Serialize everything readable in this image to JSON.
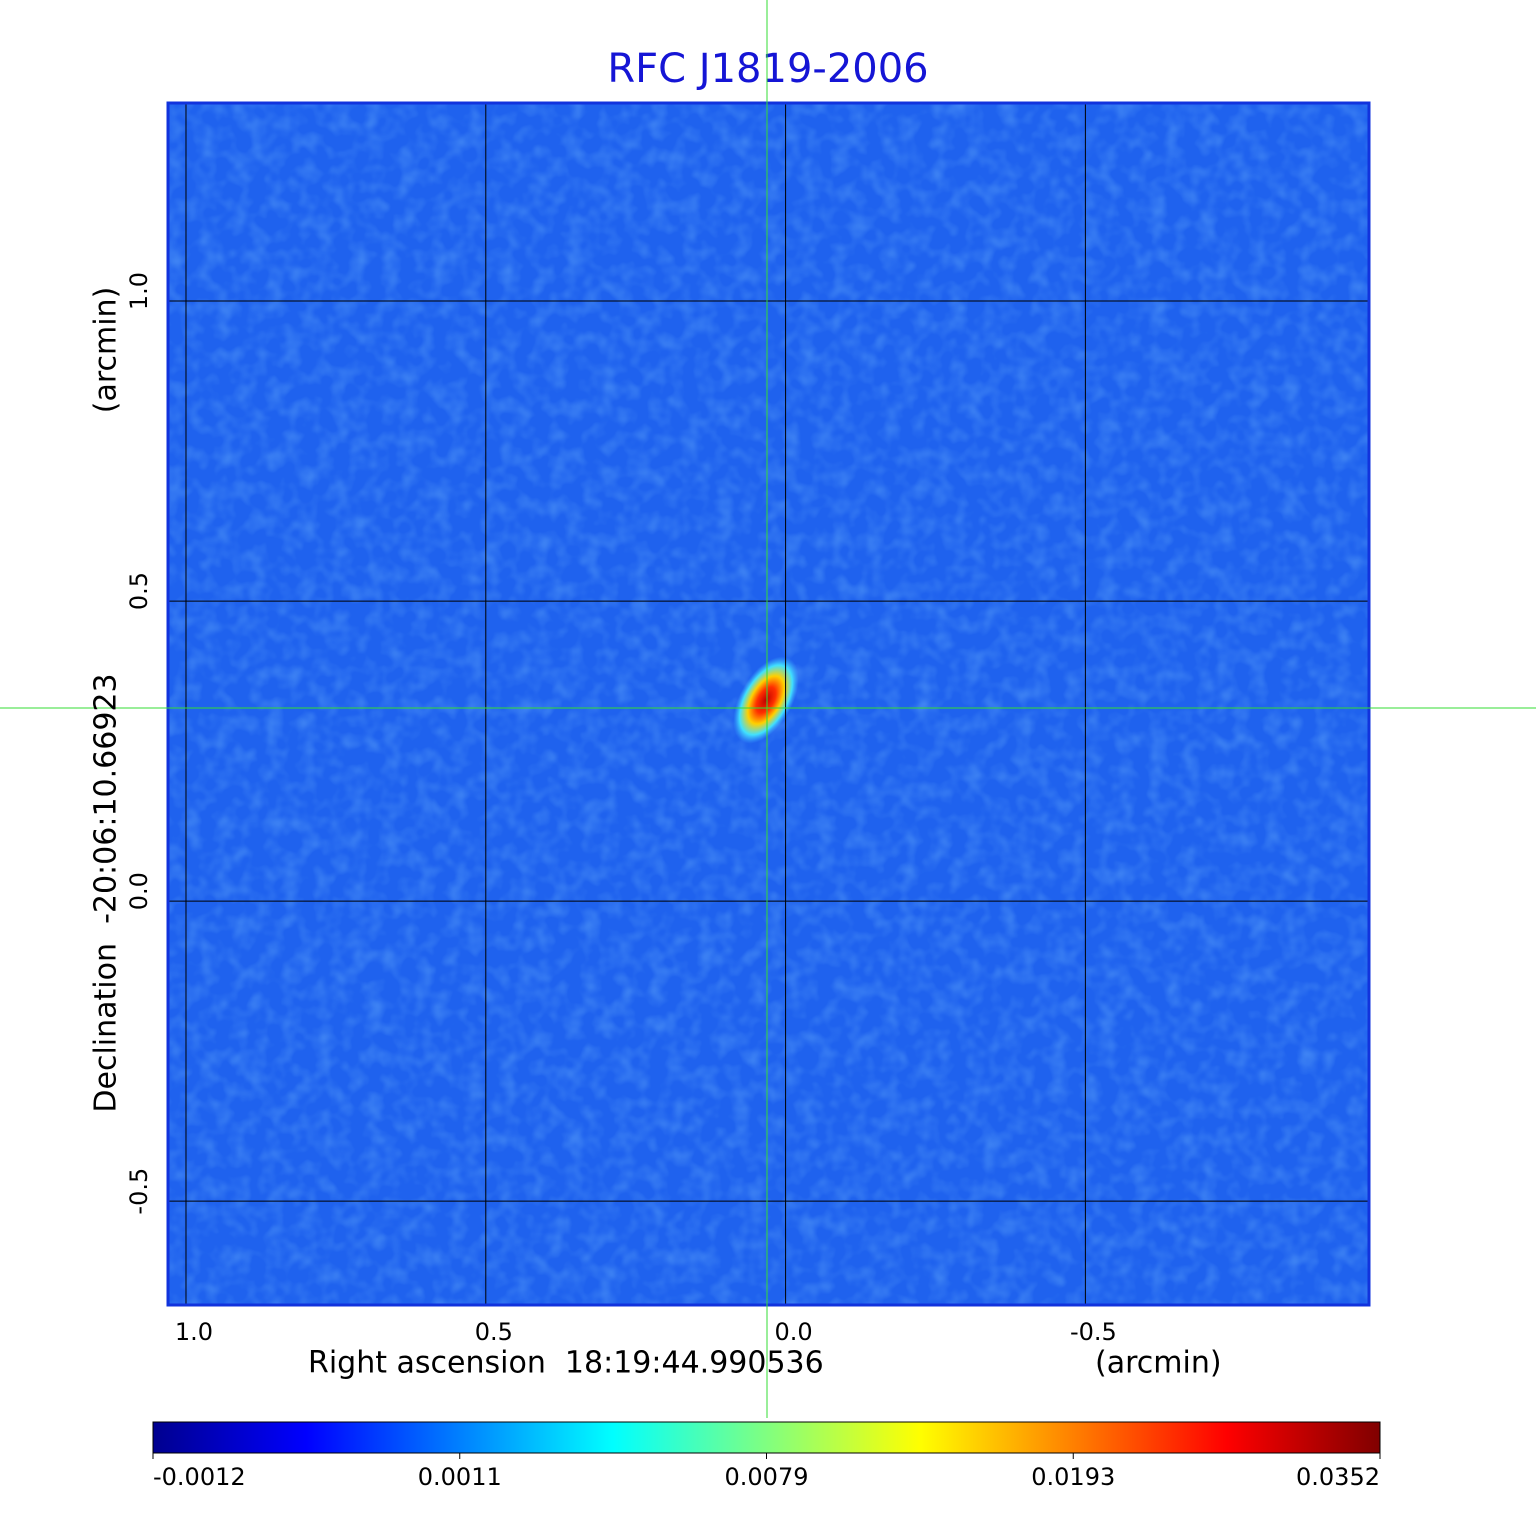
{
  "chart_data": {
    "type": "image",
    "title": "RFC J1819-2006",
    "xlabel": "Right ascension  18:19:44.990536",
    "xunit": "(arcmin)",
    "ylabel": "Declination  -20:06:10.66923",
    "yunit": "(arcmin)",
    "xlim": [
      1.03,
      -0.973
    ],
    "ylim": [
      -0.673,
      1.33
    ],
    "xticks": [
      {
        "value": 1,
        "label": "1.0"
      },
      0.5,
      {
        "value": 0,
        "label": "0.0"
      },
      -0.5
    ],
    "yticks": [
      {
        "value": 1,
        "label": "1.0"
      },
      0.5,
      {
        "value": 0,
        "label": "0.0"
      },
      -0.5
    ],
    "grid": true,
    "colorbar": {
      "ticks": [
        -0.0012,
        0.0011,
        0.0079,
        0.0193,
        0.0352
      ],
      "colors": [
        "#00008f",
        "#0000ff",
        "#0080ff",
        "#00ffff",
        "#80ff80",
        "#ffff00",
        "#ff8000",
        "#ff0000",
        "#800000"
      ]
    }
  }
}
